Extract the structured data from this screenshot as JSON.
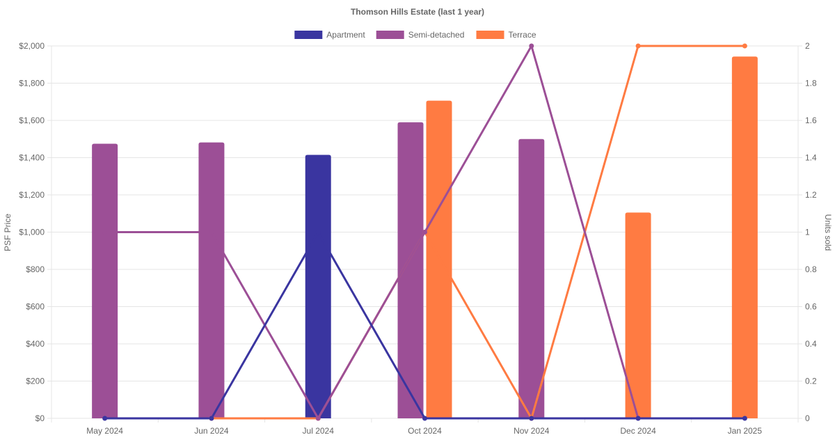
{
  "chart_data": {
    "type": "bar",
    "title": "Thomson Hills Estate (last 1 year)",
    "xlabel": "",
    "ylabel": "PSF Price",
    "y2label": "Units sold",
    "legend_position": "top-center",
    "grid": true,
    "categories": [
      "May 2024",
      "Jun 2024",
      "Jul 2024",
      "Oct 2024",
      "Nov 2024",
      "Dec 2024",
      "Jan 2025"
    ],
    "ylim": [
      0,
      2000
    ],
    "yticks": [
      "$0",
      "$200",
      "$400",
      "$600",
      "$800",
      "$1,000",
      "$1,200",
      "$1,400",
      "$1,600",
      "$1,800",
      "$2,000"
    ],
    "y2lim": [
      0,
      2
    ],
    "y2ticks": [
      "0",
      "0.2",
      "0.4",
      "0.6",
      "0.8",
      "1",
      "1.2",
      "1.4",
      "1.6",
      "1.8",
      "2"
    ],
    "series": [
      {
        "name": "Apartment",
        "color": "#3a35a0",
        "psf": [
          null,
          null,
          1415,
          null,
          null,
          null,
          null
        ],
        "units": [
          0,
          0,
          1,
          0,
          0,
          0,
          0
        ]
      },
      {
        "name": "Semi-detached",
        "color": "#9c4f96",
        "psf": [
          1475,
          1482,
          null,
          1590,
          1500,
          null,
          null
        ],
        "units": [
          1,
          1,
          0,
          1,
          2,
          0,
          null
        ]
      },
      {
        "name": "Terrace",
        "color": "#ff7b42",
        "psf": [
          null,
          null,
          null,
          1706,
          null,
          1105,
          1943
        ],
        "units": [
          null,
          0,
          0,
          1,
          0,
          2,
          2
        ]
      }
    ]
  }
}
